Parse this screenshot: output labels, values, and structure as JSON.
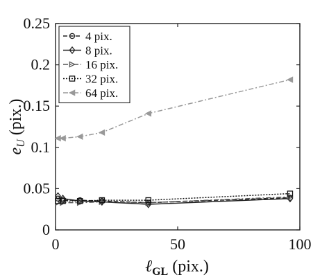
{
  "chart_data": {
    "type": "line",
    "xlabel": "ℓGL (pix.)",
    "ylabel": "eU (pix.)",
    "xlim": [
      0,
      100
    ],
    "ylim": [
      0,
      0.25
    ],
    "x_ticks": [
      0,
      50,
      100
    ],
    "y_ticks": [
      0,
      0.05,
      0.1,
      0.15,
      0.2,
      0.25
    ],
    "x_tick_labels": [
      "0",
      "50",
      "100"
    ],
    "y_tick_labels": [
      "0",
      "0.05",
      "0.1",
      "0.15",
      "0.2",
      "0.25"
    ],
    "grid": false,
    "legend_position": "top-left",
    "series": [
      {
        "name": "4  pix.",
        "color": "#222222",
        "marker": "circle",
        "dash": "dash",
        "x": [
          1,
          3,
          10,
          19,
          38,
          96
        ],
        "y": [
          0.038,
          0.036,
          0.036,
          0.035,
          0.033,
          0.039
        ]
      },
      {
        "name": "8  pix.",
        "color": "#222222",
        "marker": "diamond",
        "dash": "solid",
        "x": [
          1,
          3,
          10,
          19,
          38,
          96
        ],
        "y": [
          0.041,
          0.038,
          0.035,
          0.034,
          0.031,
          0.038
        ]
      },
      {
        "name": "16 pix.",
        "color": "#555555",
        "marker": "triangle-right",
        "dash": "dashdot",
        "x": [
          1,
          3,
          10,
          19,
          38,
          96
        ],
        "y": [
          0.033,
          0.033,
          0.033,
          0.034,
          0.033,
          0.04
        ]
      },
      {
        "name": "32 pix.",
        "color": "#111111",
        "marker": "square",
        "dash": "dot",
        "x": [
          1,
          3,
          10,
          19,
          38,
          96
        ],
        "y": [
          0.035,
          0.035,
          0.035,
          0.036,
          0.036,
          0.044
        ]
      },
      {
        "name": "64 pix.",
        "color": "#999999",
        "marker": "triangle-left",
        "dash": "dashdot",
        "x": [
          1,
          3,
          10,
          19,
          38,
          96
        ],
        "y": [
          0.111,
          0.111,
          0.113,
          0.118,
          0.141,
          0.182
        ]
      }
    ]
  }
}
